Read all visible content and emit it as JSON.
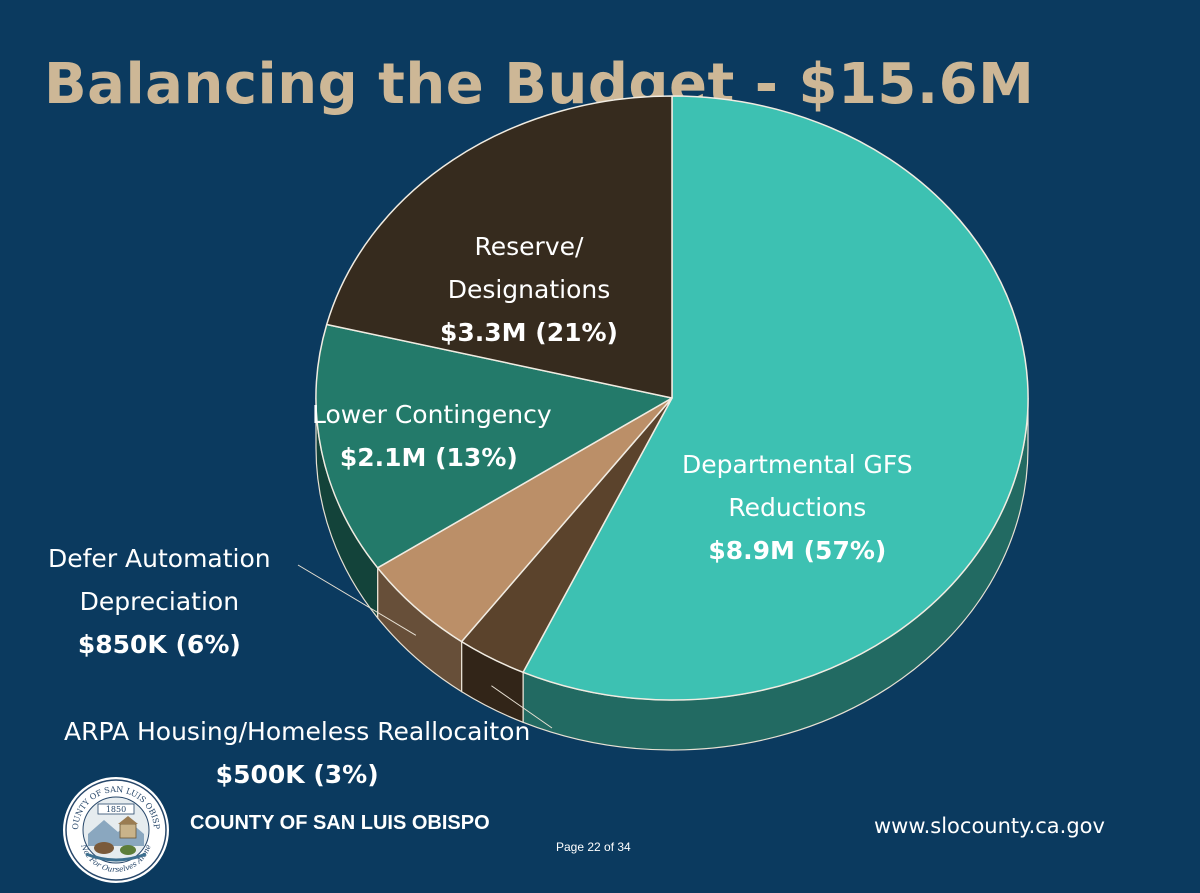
{
  "title": "Balancing the Budget - $15.6M",
  "chart_data": {
    "type": "pie",
    "title": "Balancing the Budget - $15.6M",
    "total_label": "$15.6M",
    "slices": [
      {
        "name": "Departmental GFS Reductions",
        "value_label": "$8.9M (57%)",
        "value": 8.9,
        "percent": 57,
        "color": "#3dc1b2"
      },
      {
        "name": "ARPA Housing/Homeless Reallocaiton",
        "value_label": "$500K (3%)",
        "value": 0.5,
        "percent": 3,
        "color": "#5b432c"
      },
      {
        "name": "Defer Automation Depreciation",
        "value_label": "$850K (6%)",
        "value": 0.85,
        "percent": 6,
        "color": "#bb8f68"
      },
      {
        "name": "Lower Contingency",
        "value_label": "$2.1M (13%)",
        "value": 2.1,
        "percent": 13,
        "color": "#237a6a"
      },
      {
        "name": "Reserve/ Designations",
        "value_label": "$3.3M (21%)",
        "value": 3.3,
        "percent": 21,
        "color": "#362b1e"
      }
    ]
  },
  "labels": {
    "reserve": {
      "line1": "Reserve/",
      "line2": "Designations",
      "value": "$3.3M (21%)"
    },
    "contingency": {
      "line1": "Lower Contingency",
      "value": "$2.1M (13%)"
    },
    "departmental": {
      "line1": "Departmental GFS",
      "line2": "Reductions",
      "value": "$8.9M (57%)"
    },
    "defer": {
      "line1": "Defer Automation",
      "line2": "Depreciation",
      "value": "$850K (6%)"
    },
    "arpa": {
      "line1": "ARPA Housing/Homeless Reallocaiton",
      "value": "$500K (3%)"
    }
  },
  "footer": {
    "org": "COUNTY OF SAN LUIS OBISPO",
    "page": "Page 22 of 34",
    "url": "www.slocounty.ca.gov"
  },
  "seal": {
    "top_text": "COUNTY OF SAN LUIS OBISPO",
    "year": "1850",
    "motto": "Not For Ourselves Alone"
  }
}
